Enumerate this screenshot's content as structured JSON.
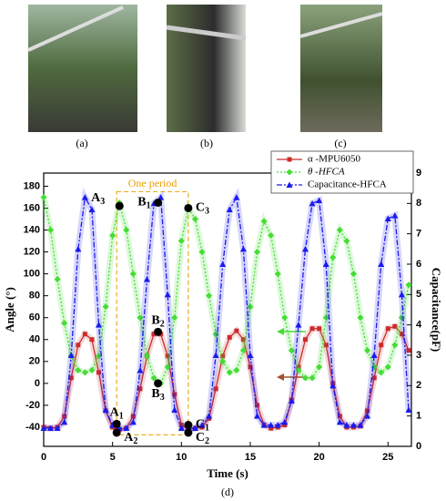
{
  "captions": [
    "(a)",
    "(b)",
    "(c)",
    "(d)"
  ],
  "chart_data": {
    "type": "line",
    "x_label": "Time (s)",
    "y_label": "Angle (°)",
    "y2_label": "Capacitance(pF)",
    "xlim": [
      0,
      26.7
    ],
    "xticks": [
      0,
      5,
      10,
      15,
      20,
      25
    ],
    "ylim": [
      -57.5,
      192
    ],
    "yticks": [
      -40,
      -20,
      0,
      20,
      40,
      60,
      80,
      100,
      120,
      140,
      160,
      180
    ],
    "y2lim": [
      0,
      9
    ],
    "y2ticks": [
      0,
      1,
      2,
      3,
      4,
      5,
      6,
      7,
      8,
      9
    ],
    "legend": "top right",
    "x": [
      0,
      0.5,
      1,
      1.5,
      2,
      2.5,
      3,
      3.5,
      4,
      4.5,
      5,
      5.5,
      6,
      6.5,
      7,
      7.5,
      8,
      8.5,
      9,
      9.5,
      10,
      10.5,
      11,
      11.5,
      12,
      12.5,
      13,
      13.5,
      14,
      14.5,
      15,
      15.5,
      16,
      16.5,
      17,
      17.5,
      18,
      18.5,
      19,
      19.5,
      20,
      20.5,
      21,
      21.5,
      22,
      22.5,
      23,
      23.5,
      24,
      24.5,
      25,
      25.5,
      26,
      26.5
    ],
    "series": [
      {
        "name": "α -MPU6050",
        "color": "#cc2b2b",
        "marker": "square",
        "axis": "y",
        "values": [
          -40,
          -41,
          -40,
          -30,
          5,
          35,
          45,
          40,
          10,
          -25,
          -40,
          -42,
          -41,
          -30,
          -5,
          25,
          45,
          45,
          25,
          -10,
          -38,
          -42,
          -41,
          -40,
          -32,
          -5,
          25,
          42,
          48,
          40,
          15,
          -20,
          -38,
          -41,
          -40,
          -38,
          -15,
          15,
          40,
          50,
          50,
          35,
          0,
          -30,
          -40,
          -40,
          -39,
          -25,
          5,
          35,
          50,
          52,
          45,
          30
        ]
      },
      {
        "name": "θ -HFCA",
        "color": "#44dd33",
        "marker": "diamond",
        "axis": "y",
        "values": [
          170,
          140,
          95,
          55,
          25,
          12,
          10,
          12,
          25,
          70,
          135,
          165,
          140,
          100,
          60,
          25,
          5,
          0,
          15,
          60,
          130,
          160,
          150,
          120,
          80,
          45,
          20,
          10,
          12,
          30,
          70,
          120,
          148,
          135,
          100,
          60,
          30,
          12,
          5,
          5,
          15,
          60,
          115,
          140,
          130,
          100,
          60,
          30,
          15,
          10,
          15,
          35,
          60,
          90
        ]
      },
      {
        "name": "Capacitance-HFCA",
        "color": "#1a1aee",
        "marker": "triangle",
        "axis": "y2",
        "values": [
          0.6,
          0.6,
          0.6,
          0.8,
          3,
          6.5,
          8.2,
          7.8,
          4,
          1.2,
          0.7,
          0.6,
          0.6,
          0.8,
          2.5,
          5.5,
          8.0,
          8.2,
          5,
          1.2,
          0.6,
          0.6,
          0.6,
          0.7,
          1,
          3,
          6,
          7.8,
          8.2,
          6.5,
          3,
          1,
          0.7,
          0.7,
          0.7,
          0.8,
          1.5,
          4,
          6.5,
          8.0,
          8.1,
          6,
          2,
          0.8,
          0.7,
          0.7,
          0.7,
          1,
          3,
          6,
          7.5,
          7.6,
          5,
          1.2
        ]
      }
    ],
    "period": {
      "label": "One period",
      "x": [
        5.3,
        10.5
      ],
      "y": [
        -47,
        175
      ]
    },
    "points": [
      {
        "letter": "A",
        "sub": "3",
        "x": 5.5,
        "y": 162,
        "label_pos": "nw"
      },
      {
        "letter": "B",
        "sub": "1",
        "x": 8.3,
        "y": 165,
        "label_pos": "w"
      },
      {
        "letter": "C",
        "sub": "3",
        "x": 10.5,
        "y": 160,
        "label_pos": "e"
      },
      {
        "letter": "B",
        "sub": "2",
        "x": 8.3,
        "y": 47,
        "label_pos": "n"
      },
      {
        "letter": "B",
        "sub": "3",
        "x": 8.3,
        "y": 0,
        "label_pos": "s"
      },
      {
        "letter": "A",
        "sub": "1",
        "x": 5.3,
        "y": -37,
        "label_pos": "n"
      },
      {
        "letter": "A",
        "sub": "2",
        "x": 5.3,
        "y": -45,
        "label_pos": "se"
      },
      {
        "letter": "C",
        "sub": "1",
        "x": 10.5,
        "y": -38,
        "label_pos": "e"
      },
      {
        "letter": "C",
        "sub": "2",
        "x": 10.5,
        "y": -45,
        "label_pos": "se"
      }
    ]
  }
}
